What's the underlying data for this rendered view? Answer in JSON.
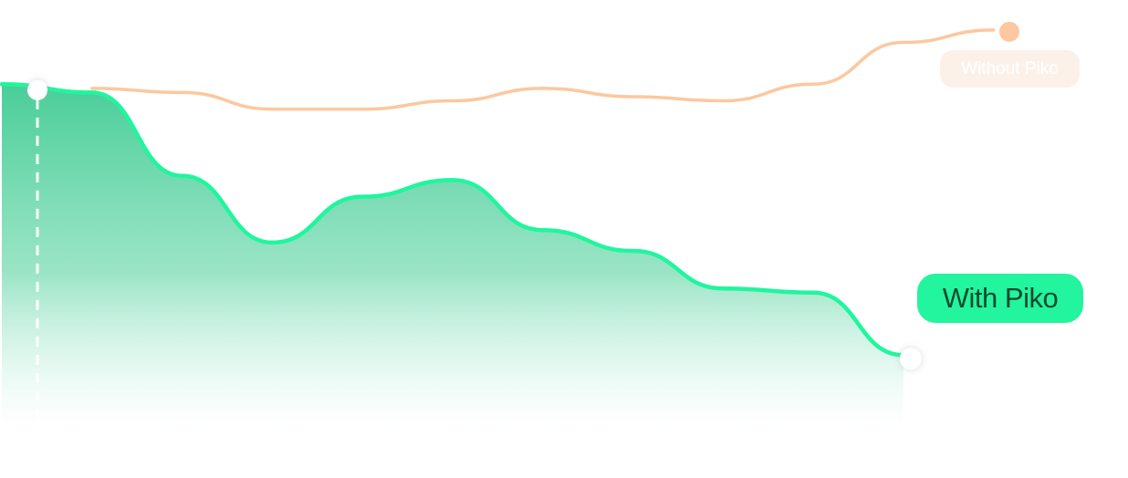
{
  "chart_data": {
    "type": "area",
    "title": "",
    "xlabel": "",
    "ylabel": "",
    "grid": false,
    "x": [
      0,
      1,
      2,
      3,
      4,
      5,
      6,
      7,
      8,
      9,
      10,
      11,
      12
    ],
    "ylim": [
      0,
      100
    ],
    "series": [
      {
        "name": "Without Piko",
        "style": "line",
        "color": "#fdc79f",
        "x": [
          1,
          2,
          3,
          4,
          5,
          6,
          7,
          8,
          9,
          10,
          11
        ],
        "values": [
          81,
          80,
          76,
          76,
          78,
          81,
          79,
          78,
          82,
          92,
          95
        ]
      },
      {
        "name": "With Piko",
        "style": "area",
        "color": "#1ff69e",
        "x": [
          0,
          1,
          2,
          3,
          4,
          5,
          6,
          7,
          8,
          9,
          10
        ],
        "values": [
          82,
          80,
          60,
          44,
          55,
          59,
          47,
          42,
          33,
          32,
          17
        ]
      }
    ],
    "markers": [
      {
        "series": "Without Piko",
        "position": "end",
        "color": "#fdc79f"
      },
      {
        "series": "With Piko",
        "position": "start",
        "color": "#ffffff",
        "dashed_drop_line": true
      },
      {
        "series": "With Piko",
        "position": "end",
        "color": "#ffffff"
      }
    ],
    "annotations": {
      "without_label": "Without Piko",
      "with_label": "With Piko"
    }
  }
}
